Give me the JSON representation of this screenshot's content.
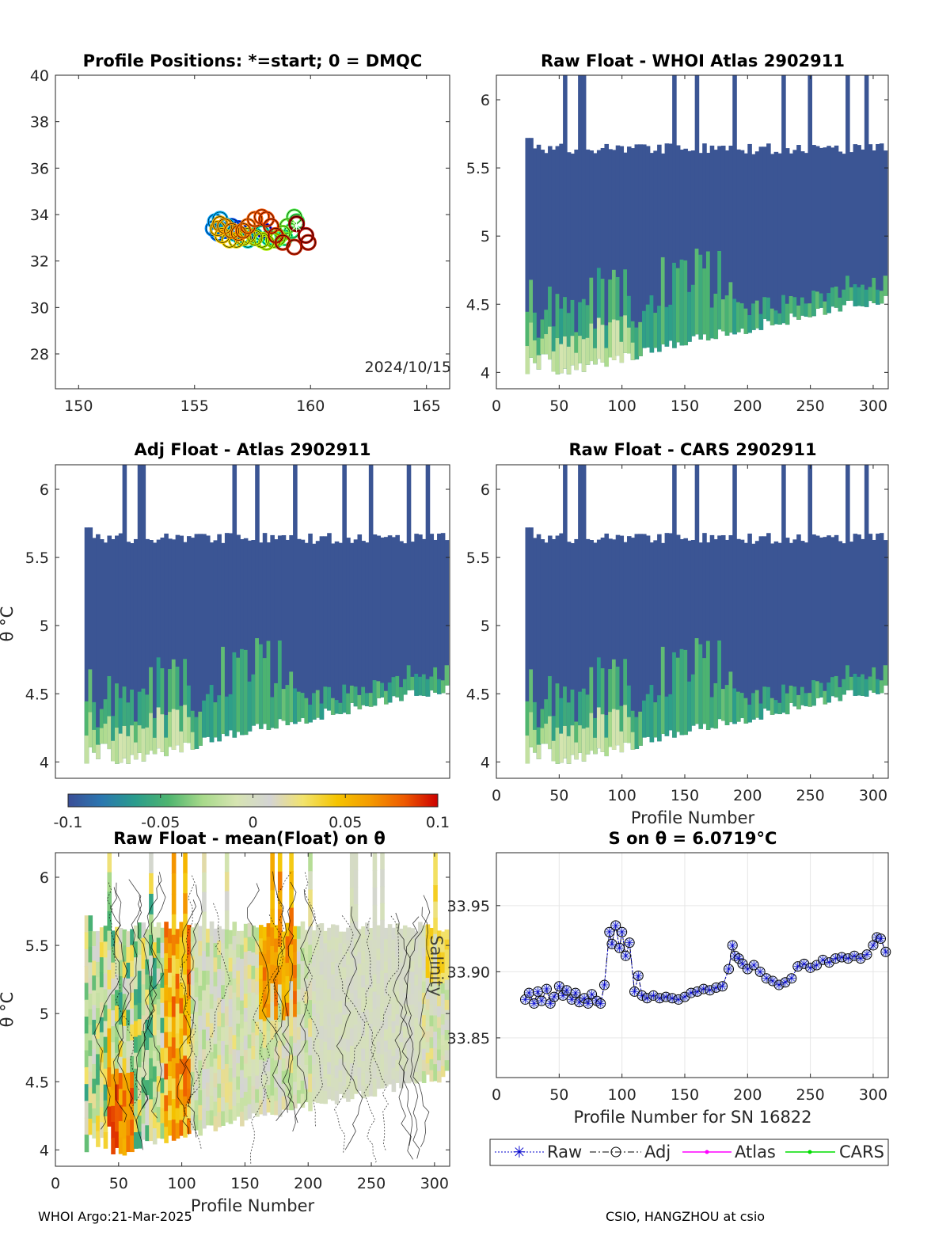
{
  "footer": {
    "left": "WHOI Argo:21-Mar-2025",
    "right": "CSIO, HANGZHOU at csio"
  },
  "chart_data": [
    {
      "id": "positions",
      "type": "scatter",
      "title": "Profile Positions: *=start; 0 = DMQC",
      "annotation": "2024/10/15",
      "xlim": [
        149,
        166
      ],
      "ylim": [
        26.5,
        40
      ],
      "xticks": [
        150,
        155,
        160,
        165
      ],
      "yticks": [
        28,
        30,
        32,
        34,
        36,
        38,
        40
      ],
      "track": {
        "lon": [
          159.4,
          159.8,
          159.9,
          159.3,
          158.8,
          158.5,
          158.3,
          158.1,
          157.9,
          157.6,
          157.3,
          157.1,
          156.9,
          156.6,
          156.3,
          156.1,
          156.0,
          156.2,
          156.5,
          156.8,
          157.1,
          157.3,
          157.6,
          157.9,
          158.1,
          158.4,
          158.6,
          158.8,
          159.0,
          159.3,
          159.4,
          159.2,
          158.9,
          158.5,
          158.2,
          157.9,
          157.6,
          157.3,
          157.0,
          156.7,
          156.4,
          156.1,
          155.9,
          155.8,
          156.0,
          156.3,
          156.6,
          156.9,
          157.2,
          157.6,
          158.0
        ],
        "lat": [
          33.6,
          33.1,
          32.8,
          32.6,
          32.8,
          33.1,
          33.5,
          33.8,
          33.9,
          33.8,
          33.5,
          33.3,
          33.2,
          33.3,
          33.5,
          33.6,
          33.4,
          33.1,
          32.9,
          32.9,
          33.0,
          33.1,
          33.0,
          32.9,
          32.8,
          32.9,
          33.0,
          33.2,
          33.5,
          33.9,
          33.7,
          33.3,
          33.0,
          32.9,
          33.0,
          33.2,
          33.1,
          32.9,
          33.0,
          33.2,
          33.5,
          33.8,
          33.7,
          33.4,
          33.2,
          33.3,
          33.5,
          33.4,
          33.1,
          33.0,
          33.3
        ]
      },
      "start": {
        "lon": 159.4,
        "lat": 33.5
      },
      "colors": [
        "#0000ff",
        "#00aaff",
        "#00ffaa",
        "#aaff00",
        "#ffcc00",
        "#ff5500",
        "#aa0000"
      ]
    },
    {
      "id": "raw-whoi",
      "type": "heatmap",
      "title": "Raw Float - WHOI Atlas  2902911",
      "xlim": [
        0,
        312
      ],
      "ylim": [
        3.88,
        6.18
      ],
      "xticks": [
        0,
        50,
        100,
        150,
        200,
        250,
        300
      ],
      "yticks": [
        4,
        4.5,
        5,
        5.5,
        6
      ],
      "profiles": [
        23,
        310
      ]
    },
    {
      "id": "adj-atlas",
      "type": "heatmap",
      "title": "Adj Float - Atlas  2902911",
      "ylabel": "θ °C",
      "xlim": [
        0,
        312
      ],
      "ylim": [
        3.88,
        6.18
      ],
      "yticks": [
        4,
        4.5,
        5,
        5.5,
        6
      ],
      "profiles": [
        23,
        310
      ]
    },
    {
      "id": "raw-cars",
      "type": "heatmap",
      "title": "Raw Float - CARS  2902911",
      "xlabel": "Profile Number",
      "xlim": [
        0,
        312
      ],
      "ylim": [
        3.88,
        6.18
      ],
      "xticks": [
        0,
        50,
        100,
        150,
        200,
        250,
        300
      ],
      "yticks": [
        4,
        4.5,
        5,
        5.5,
        6
      ],
      "profiles": [
        23,
        310
      ]
    },
    {
      "id": "colorbar",
      "type": "heatmap",
      "range": [
        -0.1,
        0.1
      ],
      "ticks": [
        "-0.1",
        "-0.05",
        "0",
        "0.05",
        "0.1"
      ],
      "colors": [
        "#3b4e97",
        "#2b77b0",
        "#2a9c8c",
        "#4fb56f",
        "#a7d98a",
        "#d6e4b1",
        "#d4d4d4",
        "#f2e36c",
        "#f5c400",
        "#f49a00",
        "#ee5a00",
        "#cc0000"
      ]
    },
    {
      "id": "anomaly",
      "type": "heatmap",
      "title": "Raw Float - mean(Float) on θ",
      "ylabel": "θ °C",
      "xlabel": "Profile Number",
      "xlim": [
        0,
        312
      ],
      "ylim": [
        3.88,
        6.18
      ],
      "xticks": [
        0,
        50,
        100,
        150,
        200,
        250,
        300
      ],
      "yticks": [
        4,
        4.5,
        5,
        5.5,
        6
      ],
      "profiles": [
        23,
        310
      ]
    },
    {
      "id": "salinity",
      "type": "line",
      "title": "S on θ = 6.0719°C",
      "xlabel": "Profile Number for SN 16822",
      "ylabel": "Salinity",
      "xlim": [
        0,
        312
      ],
      "ylim": [
        33.82,
        33.99
      ],
      "xticks": [
        0,
        50,
        100,
        150,
        200,
        250,
        300
      ],
      "yticks": [
        33.85,
        33.9,
        33.95
      ],
      "legend": [
        "Raw",
        "Adj",
        "Atlas",
        "CARS"
      ],
      "legend_position": "below",
      "x": [
        23,
        26,
        30,
        33,
        36,
        40,
        43,
        46,
        50,
        53,
        56,
        60,
        63,
        66,
        70,
        73,
        76,
        80,
        83,
        86,
        90,
        92,
        95,
        98,
        100,
        103,
        106,
        110,
        113,
        116,
        120,
        125,
        130,
        135,
        140,
        145,
        150,
        155,
        160,
        165,
        170,
        175,
        180,
        185,
        188,
        190,
        193,
        196,
        200,
        205,
        210,
        215,
        220,
        225,
        230,
        235,
        240,
        245,
        250,
        255,
        260,
        265,
        270,
        275,
        280,
        285,
        290,
        295,
        300,
        303,
        306,
        310
      ],
      "y": [
        33.879,
        33.884,
        33.876,
        33.885,
        33.878,
        33.887,
        33.876,
        33.881,
        33.889,
        33.882,
        33.886,
        33.879,
        33.884,
        33.877,
        33.88,
        33.876,
        33.883,
        33.878,
        33.876,
        33.89,
        33.93,
        33.921,
        33.935,
        33.918,
        33.93,
        33.912,
        33.922,
        33.885,
        33.897,
        33.882,
        33.88,
        33.882,
        33.88,
        33.881,
        33.88,
        33.879,
        33.881,
        33.884,
        33.885,
        33.887,
        33.886,
        33.888,
        33.889,
        33.902,
        33.92,
        33.912,
        33.91,
        33.906,
        33.902,
        33.905,
        33.9,
        33.895,
        33.893,
        33.89,
        33.892,
        33.895,
        33.904,
        33.906,
        33.903,
        33.905,
        33.909,
        33.907,
        33.91,
        33.911,
        33.91,
        33.912,
        33.91,
        33.913,
        33.92,
        33.926,
        33.925,
        33.915
      ]
    }
  ]
}
